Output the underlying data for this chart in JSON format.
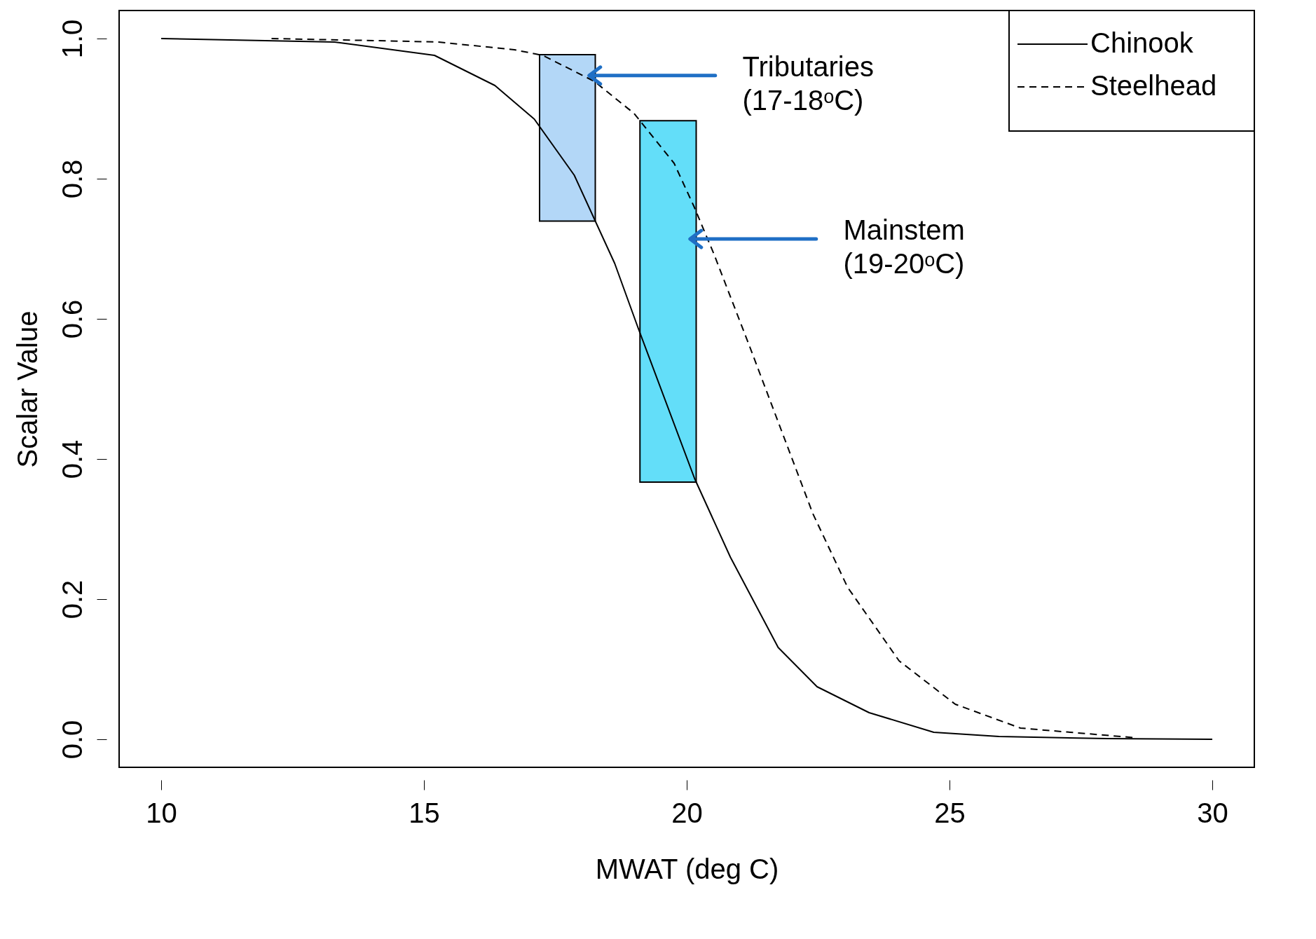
{
  "chart_data": {
    "type": "line",
    "xlabel": "MWAT (deg C)",
    "ylabel": "Scalar Value",
    "xlim": [
      9.2,
      30.8
    ],
    "ylim": [
      -0.04,
      1.04
    ],
    "xticks": [
      10,
      15,
      20,
      25,
      30
    ],
    "yticks": [
      {
        "value": 0,
        "label": "0.0"
      },
      0.2,
      0.4,
      0.6,
      0.8,
      {
        "value": 1,
        "label": "1.0"
      }
    ],
    "legend": "top right",
    "grid": false,
    "series": [
      {
        "name": "Chinook",
        "color": "#000000",
        "line_style": "solid",
        "x": [
          10,
          13.3,
          15.2,
          16.35,
          17.1,
          17.86,
          18.63,
          19.07,
          20.15,
          20.83,
          21.74,
          22.48,
          23.47,
          24.7,
          25.94,
          28,
          30
        ],
        "values": [
          1,
          0.995,
          0.976,
          0.933,
          0.885,
          0.805,
          0.679,
          0.588,
          0.372,
          0.26,
          0.131,
          0.075,
          0.038,
          0.01,
          0.004,
          0.001,
          0
        ]
      },
      {
        "name": "Steelhead",
        "color": "#000000",
        "line_style": "dashed",
        "x": [
          12.1,
          14.07,
          15.28,
          16.72,
          17.26,
          18.24,
          19,
          19.76,
          20.14,
          20.52,
          21.2,
          22.4,
          23.06,
          24.04,
          25.11,
          26.35,
          28.57
        ],
        "values": [
          1,
          0.997,
          0.995,
          0.984,
          0.976,
          0.939,
          0.893,
          0.822,
          0.76,
          0.692,
          0.56,
          0.322,
          0.217,
          0.112,
          0.05,
          0.016,
          0.002
        ]
      }
    ],
    "bands": [
      {
        "axis": "x",
        "from": 17.2,
        "to": 18.26,
        "label": "Tributaries\n(17-18ᵒC)",
        "color": "#b3d7f7"
      },
      {
        "axis": "x",
        "from": 19.11,
        "to": 20.18,
        "label": "Mainstem\n(19-20ᵒC)",
        "color": "#63def9"
      }
    ]
  }
}
